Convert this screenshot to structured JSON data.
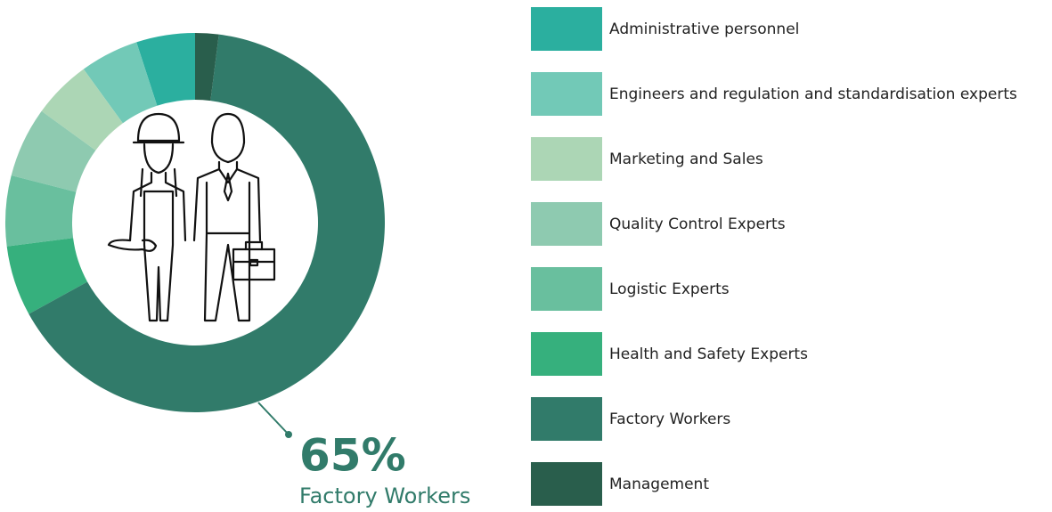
{
  "chart_data": {
    "type": "pie",
    "categories": [
      "Administrative personnel",
      "Engineers and regulation and standardisation experts",
      "Marketing and Sales",
      "Quality Control Experts",
      "Logistic Experts",
      "Health and Safety Experts",
      "Factory Workers",
      "Management"
    ],
    "values": [
      5,
      5,
      5,
      6,
      6,
      6,
      65,
      2
    ],
    "colors": [
      "#2baf9f",
      "#72c9b7",
      "#acd6b5",
      "#8ecab0",
      "#69bf9e",
      "#36b07d",
      "#317b6a",
      "#295e4c"
    ],
    "annotation": {
      "value_label": "65%",
      "category": "Factory Workers"
    }
  }
}
